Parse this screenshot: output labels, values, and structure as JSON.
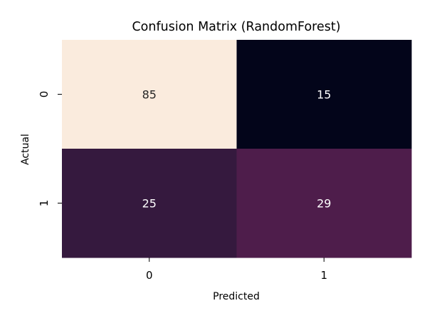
{
  "chart_data": {
    "type": "heatmap",
    "title": "Confusion Matrix (RandomForest)",
    "xlabel": "Predicted",
    "ylabel": "Actual",
    "x_categories": [
      "0",
      "1"
    ],
    "y_categories": [
      "0",
      "1"
    ],
    "values": [
      [
        85,
        15
      ],
      [
        25,
        29
      ]
    ],
    "colormap": "rocket",
    "value_range": [
      15,
      85
    ],
    "colorbar": false,
    "cell_colors": [
      [
        "#faebdd",
        "#03051a"
      ],
      [
        "#35193e",
        "#4e1d4b"
      ]
    ],
    "annotation_colors": [
      [
        "#262626",
        "#ffffff"
      ],
      [
        "#ffffff",
        "#ffffff"
      ]
    ]
  }
}
